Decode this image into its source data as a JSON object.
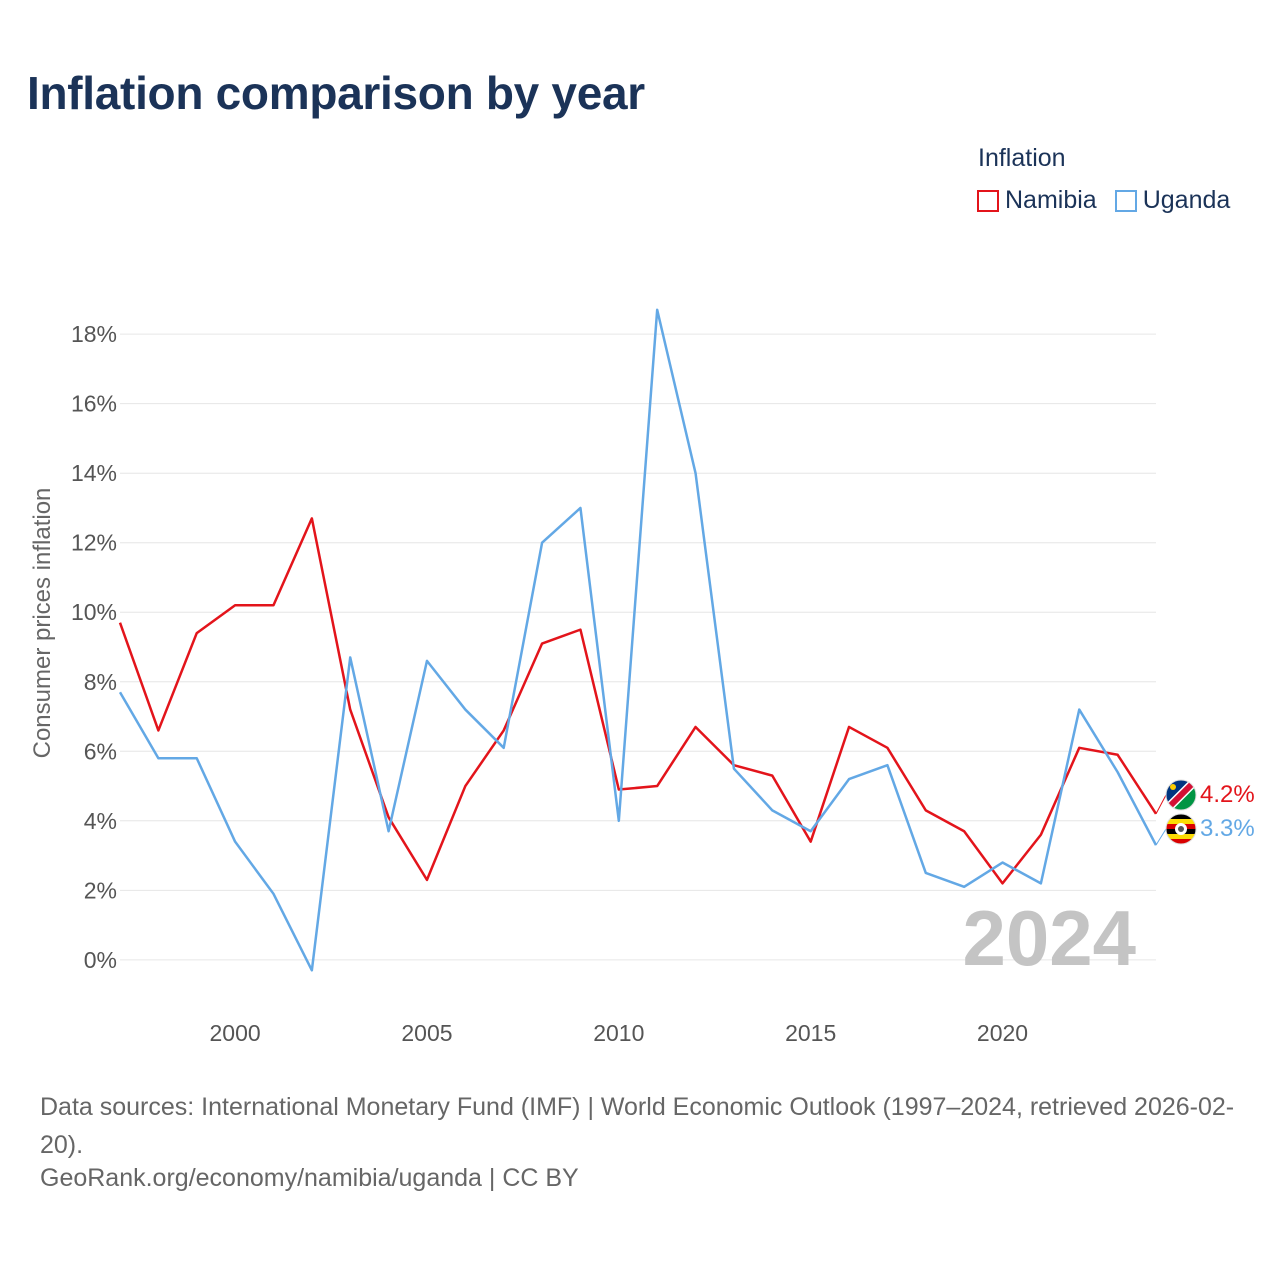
{
  "title": "Inflation comparison by year",
  "legend": {
    "title": "Inflation",
    "items": [
      {
        "label": "Namibia",
        "color": "#e3141b"
      },
      {
        "label": "Uganda",
        "color": "#63a8e5"
      }
    ]
  },
  "year_watermark": "2024",
  "source_text": "Data sources: International Monetary Fund (IMF) | World Economic Outlook (1997–2024, retrieved 2026-02-20).",
  "credit_text": "GeoRank.org/economy/namibia/uganda | CC BY",
  "chart_data": {
    "type": "line",
    "title": "Inflation comparison by year",
    "xlabel": "",
    "ylabel": "Consumer prices inflation",
    "x": [
      1997,
      1998,
      1999,
      2000,
      2001,
      2002,
      2003,
      2004,
      2005,
      2006,
      2007,
      2008,
      2009,
      2010,
      2011,
      2012,
      2013,
      2014,
      2015,
      2016,
      2017,
      2018,
      2019,
      2020,
      2021,
      2022,
      2023,
      2024
    ],
    "xlim": [
      1997,
      2024
    ],
    "ylim": [
      -1.5,
      19.5
    ],
    "x_ticks": [
      2000,
      2005,
      2010,
      2015,
      2020
    ],
    "y_ticks": [
      0,
      2,
      4,
      6,
      8,
      10,
      12,
      14,
      16,
      18
    ],
    "y_tick_labels": [
      "0%",
      "2%",
      "4%",
      "6%",
      "8%",
      "10%",
      "12%",
      "14%",
      "16%",
      "18%"
    ],
    "grid": true,
    "legend_position": "top-right",
    "series": [
      {
        "name": "Namibia",
        "color": "#e3141b",
        "values": [
          9.7,
          6.6,
          9.4,
          10.2,
          10.2,
          12.7,
          7.2,
          4.1,
          2.3,
          5.0,
          6.6,
          9.1,
          9.5,
          4.9,
          5.0,
          6.7,
          5.6,
          5.3,
          3.4,
          6.7,
          6.1,
          4.3,
          3.7,
          2.2,
          3.6,
          6.1,
          5.9,
          4.2
        ],
        "end_label": "4.2%"
      },
      {
        "name": "Uganda",
        "color": "#63a8e5",
        "values": [
          7.7,
          5.8,
          5.8,
          3.4,
          1.9,
          -0.3,
          8.7,
          3.7,
          8.6,
          7.2,
          6.1,
          12.0,
          13.0,
          4.0,
          18.7,
          14.0,
          5.5,
          4.3,
          3.7,
          5.2,
          5.6,
          2.5,
          2.1,
          2.8,
          2.2,
          7.2,
          5.4,
          3.3
        ],
        "end_label": "3.3%"
      }
    ]
  }
}
